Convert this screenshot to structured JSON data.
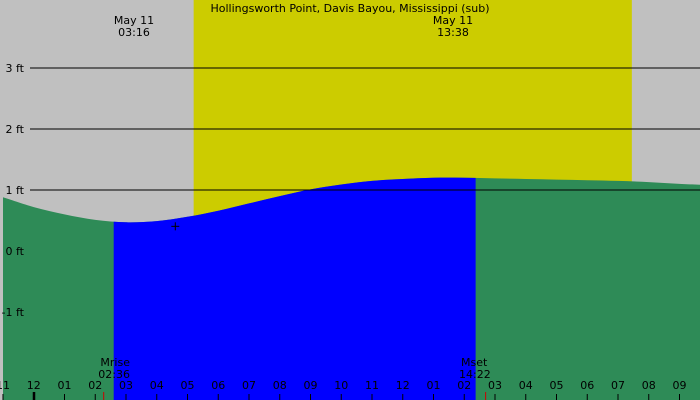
{
  "colors": {
    "night": "#c0c0c0",
    "day": "#cccc00",
    "tide_fill": "#2e8b57",
    "moon_window": "#0000ff",
    "gridline": "#000000",
    "moon_tick": "#cc0000"
  },
  "chart_data": {
    "type": "area",
    "title": "Hollingsworth Point, Davis Bayou, Mississippi (sub)",
    "xlabel": "",
    "ylabel": "",
    "units": "ft",
    "grid": true,
    "x_range_hours": [
      -1,
      33.3
    ],
    "ylim": [
      -2.2,
      4.1
    ],
    "y_ticks": [
      {
        "value": 3,
        "label": "3 ft"
      },
      {
        "value": 2,
        "label": "2 ft"
      },
      {
        "value": 1,
        "label": "1 ft"
      },
      {
        "value": 0,
        "label": "0 ft"
      },
      {
        "value": -1,
        "label": "-1 ft"
      }
    ],
    "x_ticks": [
      {
        "hour": -1,
        "label": "11"
      },
      {
        "hour": 0,
        "label": "12"
      },
      {
        "hour": 1,
        "label": "01"
      },
      {
        "hour": 2,
        "label": "02"
      },
      {
        "hour": 3,
        "label": "03"
      },
      {
        "hour": 4,
        "label": "04"
      },
      {
        "hour": 5,
        "label": "05"
      },
      {
        "hour": 6,
        "label": "06"
      },
      {
        "hour": 7,
        "label": "07"
      },
      {
        "hour": 8,
        "label": "08"
      },
      {
        "hour": 9,
        "label": "09"
      },
      {
        "hour": 10,
        "label": "10"
      },
      {
        "hour": 11,
        "label": "11"
      },
      {
        "hour": 12,
        "label": "12"
      },
      {
        "hour": 13,
        "label": "01"
      },
      {
        "hour": 14,
        "label": "02"
      },
      {
        "hour": 15,
        "label": "03"
      },
      {
        "hour": 16,
        "label": "04"
      },
      {
        "hour": 17,
        "label": "05"
      },
      {
        "hour": 18,
        "label": "06"
      },
      {
        "hour": 19,
        "label": "07"
      },
      {
        "hour": 20,
        "label": "08"
      },
      {
        "hour": 21,
        "label": "09"
      }
    ],
    "daylight": {
      "start_hour": 5.2,
      "end_hour": 19.45
    },
    "moon_window": {
      "start_hour": 2.6,
      "end_hour": 14.37
    },
    "events": [
      {
        "type": "low",
        "date_label": "May 11",
        "time_label": "03:16",
        "hour": 3.27,
        "height": 0.47
      },
      {
        "type": "high",
        "date_label": "May 11",
        "time_label": "13:38",
        "hour": 13.63,
        "height": 1.2
      }
    ],
    "moon": {
      "rise": {
        "label": "Mrise",
        "time": "02:36",
        "hour": 2.6
      },
      "set": {
        "label": "Mset",
        "time": "14:22",
        "hour": 14.37
      }
    },
    "series": [
      {
        "values": [
          {
            "hour": -1,
            "height": 0.88
          },
          {
            "hour": 0,
            "height": 0.72
          },
          {
            "hour": 1,
            "height": 0.6
          },
          {
            "hour": 2,
            "height": 0.51
          },
          {
            "hour": 3,
            "height": 0.47
          },
          {
            "hour": 4,
            "height": 0.49
          },
          {
            "hour": 5,
            "height": 0.56
          },
          {
            "hour": 6,
            "height": 0.66
          },
          {
            "hour": 7,
            "height": 0.78
          },
          {
            "hour": 8,
            "height": 0.9
          },
          {
            "hour": 9,
            "height": 1.01
          },
          {
            "hour": 10,
            "height": 1.09
          },
          {
            "hour": 11,
            "height": 1.15
          },
          {
            "hour": 12,
            "height": 1.18
          },
          {
            "hour": 13,
            "height": 1.2
          },
          {
            "hour": 14,
            "height": 1.2
          },
          {
            "hour": 15,
            "height": 1.19
          },
          {
            "hour": 16,
            "height": 1.18
          },
          {
            "hour": 17,
            "height": 1.17
          },
          {
            "hour": 18,
            "height": 1.16
          },
          {
            "hour": 19,
            "height": 1.15
          },
          {
            "hour": 20,
            "height": 1.13
          },
          {
            "hour": 21,
            "height": 1.1
          },
          {
            "hour": 22,
            "height": 1.08
          }
        ]
      }
    ]
  }
}
